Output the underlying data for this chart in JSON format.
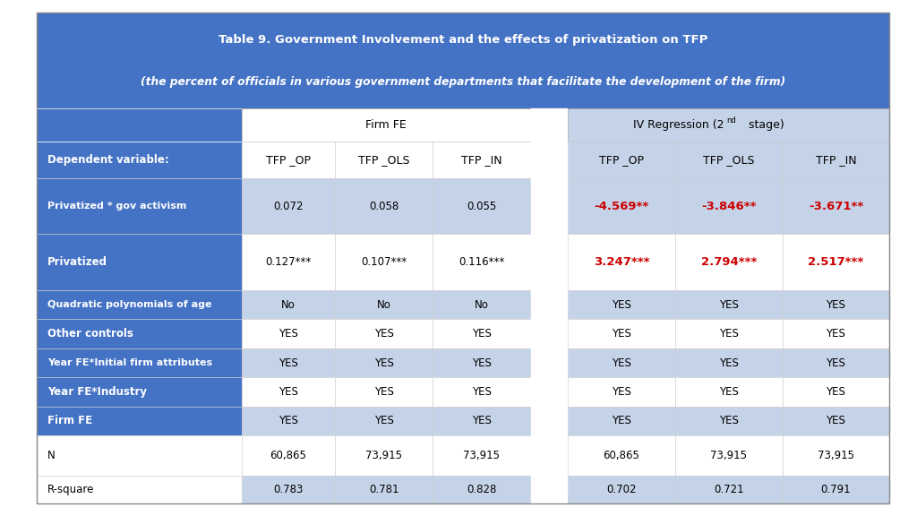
{
  "title_line1": "Table 9. Government Involvement and the effects of privatization on TFP",
  "title_line2": "(the percent of officials in various government departments that facilitate the development of the firm)",
  "blue_header_bg": "#4472C4",
  "light_blue_bg": "#C5D3E8",
  "light_blue_iv": "#C5D3E8",
  "white_bg": "#FFFFFF",
  "red_text_color": "#CC0000",
  "fig_bg": "#FFFFFF",
  "col_headers": [
    "TFP _OP",
    "TFP _OLS",
    "TFP _IN",
    "TFP _OP",
    "TFP _OLS",
    "TFP _IN"
  ],
  "rows": [
    {
      "label": "Dependent variable:",
      "label_bold": true,
      "label_blue": true,
      "vals": [
        "TFP _OP",
        "TFP _OLS",
        "TFP _IN",
        "TFP _OP",
        "TFP _OLS",
        "TFP _IN"
      ],
      "val_red": [
        false,
        false,
        false,
        false,
        false,
        false
      ],
      "val_bold": [
        false,
        false,
        false,
        false,
        false,
        false
      ],
      "is_header_row": true
    },
    {
      "label": "Privatized * gov activism",
      "label_bold": true,
      "label_blue": true,
      "vals": [
        "0.072",
        "0.058",
        "0.055",
        "-4.569**",
        "-3.846**",
        "-3.671**"
      ],
      "val_red": [
        false,
        false,
        false,
        true,
        true,
        true
      ],
      "val_bold": [
        false,
        false,
        false,
        true,
        true,
        true
      ],
      "is_header_row": false
    },
    {
      "label": "Privatized",
      "label_bold": true,
      "label_blue": true,
      "vals": [
        "0.127***",
        "0.107***",
        "0.116***",
        "3.247***",
        "2.794***",
        "2.517***"
      ],
      "val_red": [
        false,
        false,
        false,
        true,
        true,
        true
      ],
      "val_bold": [
        false,
        false,
        false,
        true,
        true,
        true
      ],
      "is_header_row": false
    },
    {
      "label": "Quadratic polynomials of age",
      "label_bold": true,
      "label_blue": true,
      "vals": [
        "No",
        "No",
        "No",
        "YES",
        "YES",
        "YES"
      ],
      "val_red": [
        false,
        false,
        false,
        false,
        false,
        false
      ],
      "val_bold": [
        false,
        false,
        false,
        false,
        false,
        false
      ],
      "is_header_row": false
    },
    {
      "label": "Other controls",
      "label_bold": true,
      "label_blue": true,
      "vals": [
        "YES",
        "YES",
        "YES",
        "YES",
        "YES",
        "YES"
      ],
      "val_red": [
        false,
        false,
        false,
        false,
        false,
        false
      ],
      "val_bold": [
        false,
        false,
        false,
        false,
        false,
        false
      ],
      "is_header_row": false
    },
    {
      "label": "Year FE*Initial firm attributes",
      "label_bold": true,
      "label_blue": true,
      "vals": [
        "YES",
        "YES",
        "YES",
        "YES",
        "YES",
        "YES"
      ],
      "val_red": [
        false,
        false,
        false,
        false,
        false,
        false
      ],
      "val_bold": [
        false,
        false,
        false,
        false,
        false,
        false
      ],
      "is_header_row": false
    },
    {
      "label": "Year FE*Industry",
      "label_bold": true,
      "label_blue": true,
      "vals": [
        "YES",
        "YES",
        "YES",
        "YES",
        "YES",
        "YES"
      ],
      "val_red": [
        false,
        false,
        false,
        false,
        false,
        false
      ],
      "val_bold": [
        false,
        false,
        false,
        false,
        false,
        false
      ],
      "is_header_row": false
    },
    {
      "label": "Firm FE",
      "label_bold": true,
      "label_blue": true,
      "vals": [
        "YES",
        "YES",
        "YES",
        "YES",
        "YES",
        "YES"
      ],
      "val_red": [
        false,
        false,
        false,
        false,
        false,
        false
      ],
      "val_bold": [
        false,
        false,
        false,
        false,
        false,
        false
      ],
      "is_header_row": false
    },
    {
      "label": "N",
      "label_bold": false,
      "label_blue": false,
      "vals": [
        "60,865",
        "73,915",
        "73,915",
        "60,865",
        "73,915",
        "73,915"
      ],
      "val_red": [
        false,
        false,
        false,
        false,
        false,
        false
      ],
      "val_bold": [
        false,
        false,
        false,
        false,
        false,
        false
      ],
      "is_header_row": false
    },
    {
      "label": "R-square",
      "label_bold": false,
      "label_blue": false,
      "vals": [
        "0.783",
        "0.781",
        "0.828",
        "0.702",
        "0.721",
        "0.791"
      ],
      "val_red": [
        false,
        false,
        false,
        false,
        false,
        false
      ],
      "val_bold": [
        false,
        false,
        false,
        false,
        false,
        false
      ],
      "is_header_row": false
    }
  ]
}
